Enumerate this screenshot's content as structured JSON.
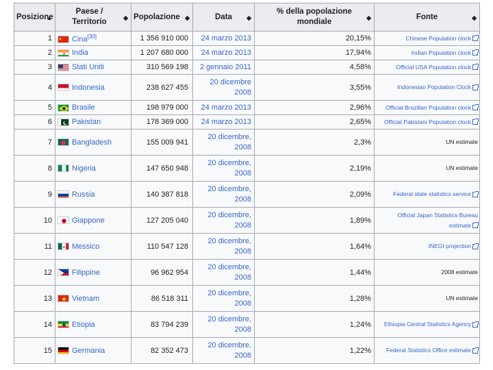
{
  "headers": {
    "posizione": "Posizione",
    "paese": "Paese / Territorio",
    "popolazione": "Popolazione",
    "data": "Data",
    "percentuale": "% della popolazione mondiale",
    "fonte": "Fonte",
    "sort_asc": "▲",
    "sort_both": "◆"
  },
  "rows": [
    {
      "pos": "1",
      "country": "Cina",
      "note": "[30]",
      "flag": "china",
      "pop": "1 356 910 000",
      "date": "24 marzo 2013",
      "pct": "20,15%",
      "source": "Chinese Population clock",
      "link": true
    },
    {
      "pos": "2",
      "country": "India",
      "note": "",
      "flag": "india",
      "pop": "1 207 680 000",
      "date": "24 marzo 2013",
      "pct": "17,94%",
      "source": "Indian Population clock",
      "link": true
    },
    {
      "pos": "3",
      "country": "Stati Uniti",
      "note": "",
      "flag": "usa",
      "pop": "310 569 198",
      "date": "2 gennaio 2011",
      "pct": "4,58%",
      "source": "Official USA Population clock",
      "link": true
    },
    {
      "pos": "4",
      "country": "Indonesia",
      "note": "",
      "flag": "indonesia",
      "pop": "238 627 455",
      "date": "20 dicembre 2008",
      "pct": "3,55%",
      "source": "Indonesian Population Clock",
      "link": true
    },
    {
      "pos": "5",
      "country": "Brasile",
      "note": "",
      "flag": "brazil",
      "pop": "198 979 000",
      "date": "24 marzo 2013",
      "pct": "2,96%",
      "source": "Official Brazilian Population clock",
      "link": true
    },
    {
      "pos": "6",
      "country": "Pakistan",
      "note": "",
      "flag": "pakistan",
      "pop": "178 369 000",
      "date": "24 marzo 2013",
      "pct": "2,65%",
      "source": "Official Pakistani Population clock",
      "link": true
    },
    {
      "pos": "7",
      "country": "Bangladesh",
      "note": "",
      "flag": "bangladesh",
      "pop": "155 009 941",
      "date": "20 dicembre, 2008",
      "pct": "2,3%",
      "source": "UN estimate",
      "link": false
    },
    {
      "pos": "8",
      "country": "Nigeria",
      "note": "",
      "flag": "nigeria",
      "pop": "147 650 948",
      "date": "20 dicembre, 2008",
      "pct": "2,19%",
      "source": "UN estimate",
      "link": false
    },
    {
      "pos": "9",
      "country": "Russia",
      "note": "",
      "flag": "russia",
      "pop": "140 387 818",
      "date": "20 dicembre, 2008",
      "pct": "2,09%",
      "source": "Federal state statistics service",
      "link": true
    },
    {
      "pos": "10",
      "country": "Giappone",
      "note": "",
      "flag": "japan",
      "pop": "127 205 040",
      "date": "20 dicembre, 2008",
      "pct": "1,89%",
      "source": "Official Japan Statistics Bureau estimate",
      "link": true
    },
    {
      "pos": "11",
      "country": "Messico",
      "note": "",
      "flag": "mexico",
      "pop": "110 547 128",
      "date": "20 dicembre, 2008",
      "pct": "1,64%",
      "source": "INEGI projection",
      "link": true
    },
    {
      "pos": "12",
      "country": "Filippine",
      "note": "",
      "flag": "philippines",
      "pop": "96 962 954",
      "date": "20 dicembre, 2008",
      "pct": "1,44%",
      "source": "2008 estimate",
      "link": false
    },
    {
      "pos": "13",
      "country": "Vietnam",
      "note": "",
      "flag": "vietnam",
      "pop": "86 518 311",
      "date": "20 dicembre, 2008",
      "pct": "1,28%",
      "source": "UN estimate",
      "link": false
    },
    {
      "pos": "14",
      "country": "Etiopia",
      "note": "",
      "flag": "ethiopia",
      "pop": "83 794 239",
      "date": "20 dicembre, 2008",
      "pct": "1,24%",
      "source": "Ethiopia Central Statistics Agency",
      "link": true
    },
    {
      "pos": "15",
      "country": "Germania",
      "note": "",
      "flag": "germany",
      "pop": "82 352 473",
      "date": "20 dicembre, 2008",
      "pct": "1,22%",
      "source": "Federal Statistics Office estimate",
      "link": true
    }
  ],
  "colors": {
    "link": "#3366cc",
    "header_bg": "#eaecf0",
    "border": "#a2a9b1"
  }
}
